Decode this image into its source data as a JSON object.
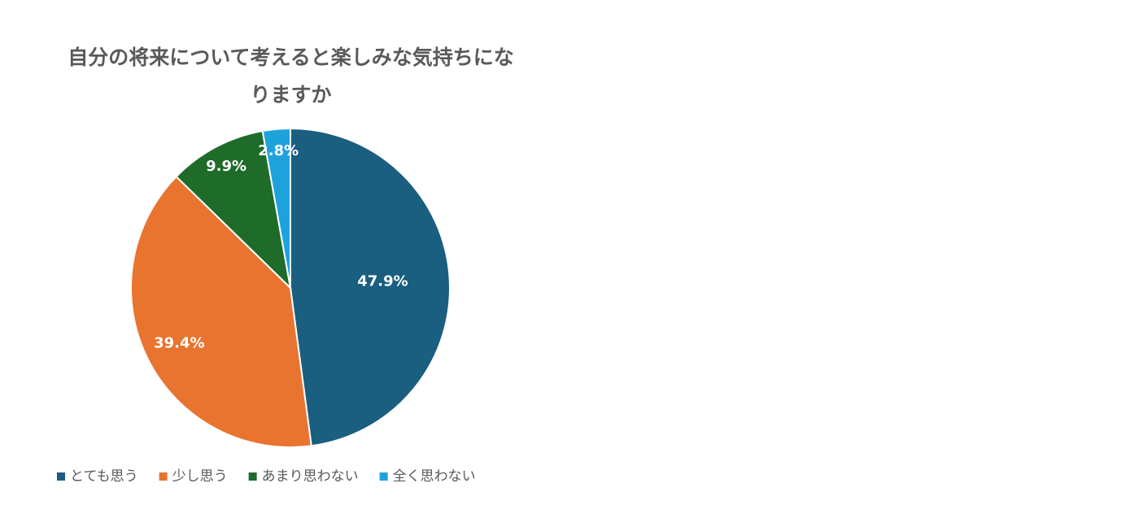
{
  "chart_data": {
    "type": "pie",
    "title": "自分の将来について考えると楽しみな気持ちになりますか",
    "categories": [
      "とても思う",
      "少し思う",
      "あまり思わない",
      "全く思わない"
    ],
    "values": [
      47.9,
      39.4,
      9.9,
      2.8
    ],
    "value_labels": [
      "47.9%",
      "39.4%",
      "9.9%",
      "2.8%"
    ],
    "colors": [
      "#1a5e80",
      "#e8742f",
      "#1e6b2a",
      "#1ea2dc"
    ],
    "legend": "bottom"
  }
}
